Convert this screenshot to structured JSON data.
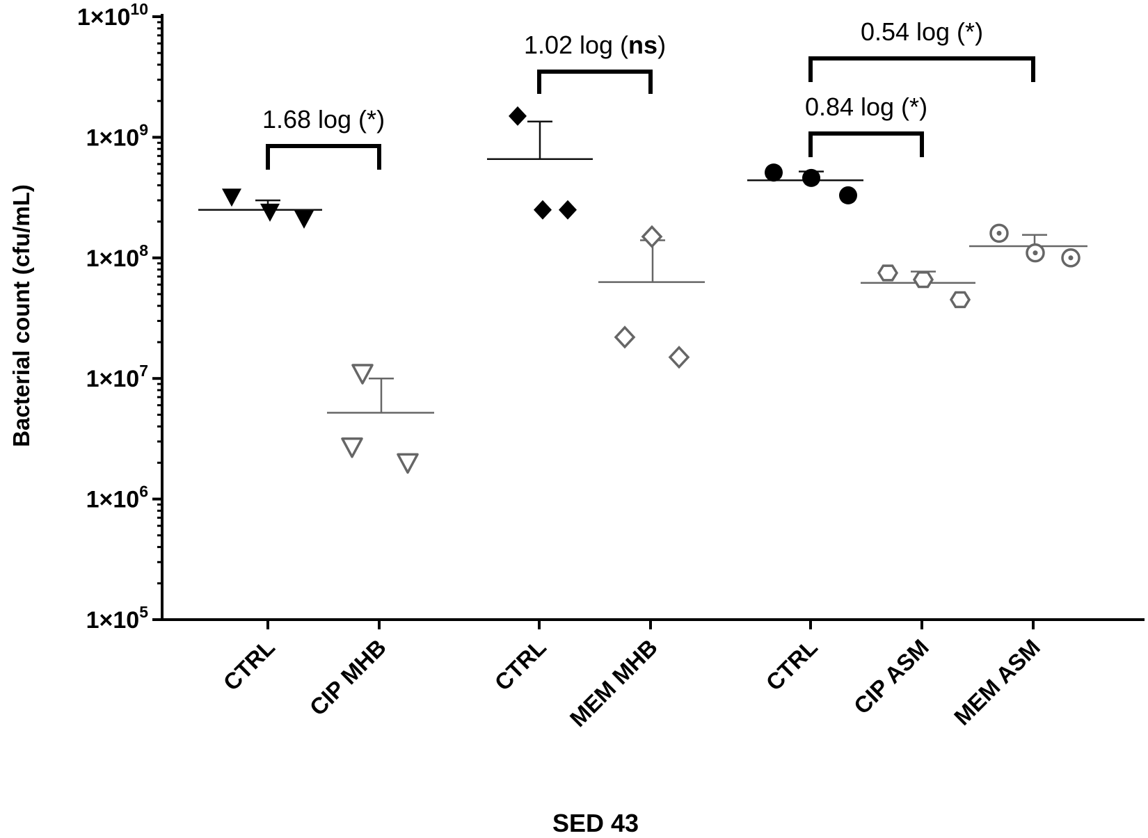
{
  "chart_data": {
    "type": "scatter",
    "title": "",
    "xlabel": "SED 43",
    "ylabel": "Bacterial count (cfu/mL)",
    "yscale": "log",
    "ylim": [
      100000,
      10000000000
    ],
    "y_ticks": [
      {
        "value": 100000,
        "mantissa": "1×10",
        "exp": "5"
      },
      {
        "value": 1000000,
        "mantissa": "1×10",
        "exp": "6"
      },
      {
        "value": 10000000,
        "mantissa": "1×10",
        "exp": "7"
      },
      {
        "value": 100000000,
        "mantissa": "1×10",
        "exp": "8"
      },
      {
        "value": 1000000000,
        "mantissa": "1×10",
        "exp": "9"
      },
      {
        "value": 10000000000,
        "mantissa": "1×10",
        "exp": "10"
      }
    ],
    "categories": [
      "CTRL",
      "CIP MHB",
      "CTRL",
      "MEM MHB",
      "CTRL",
      "CIP ASM",
      "MEM ASM"
    ],
    "groups": [
      {
        "label": "CTRL",
        "marker": "triangle-down",
        "filled": true,
        "color": "#000000",
        "values": [
          320000000,
          240000000,
          210000000
        ],
        "mean": 250000000,
        "error_top": 300000000
      },
      {
        "label": "CIP MHB",
        "marker": "triangle-down",
        "filled": false,
        "color": "#666666",
        "values": [
          11000000,
          2700000,
          2000000
        ],
        "mean": 5200000,
        "error_top": 10000000
      },
      {
        "label": "CTRL",
        "marker": "diamond",
        "filled": true,
        "color": "#000000",
        "values": [
          1500000000,
          250000000,
          250000000
        ],
        "mean": 660000000,
        "error_top": 1350000000
      },
      {
        "label": "MEM MHB",
        "marker": "diamond",
        "filled": false,
        "color": "#666666",
        "values": [
          150000000,
          22000000,
          15000000
        ],
        "mean": 63000000,
        "error_top": 140000000
      },
      {
        "label": "CTRL",
        "marker": "circle",
        "filled": true,
        "color": "#000000",
        "values": [
          510000000,
          460000000,
          330000000
        ],
        "mean": 440000000,
        "error_top": 520000000
      },
      {
        "label": "CIP ASM",
        "marker": "hexagon",
        "filled": false,
        "color": "#666666",
        "values": [
          75000000,
          66000000,
          45000000
        ],
        "mean": 62000000,
        "error_top": 77000000
      },
      {
        "label": "MEM ASM",
        "marker": "circle-dot",
        "filled": false,
        "color": "#666666",
        "values": [
          160000000,
          110000000,
          100000000
        ],
        "mean": 125000000,
        "error_top": 155000000
      }
    ],
    "annotations": [
      {
        "from": 0,
        "to": 1,
        "y_value": 600000000,
        "text_pre": "1.68 log (",
        "text_bold": "",
        "text_star": "*",
        "text_post": ")"
      },
      {
        "from": 2,
        "to": 3,
        "y_value": 6000000000,
        "text_pre": "1.02 log (",
        "text_bold": "ns",
        "text_star": "",
        "text_post": ")"
      },
      {
        "from": 4,
        "to": 5,
        "y_value": 1400000000,
        "text_pre": "0.84 log (",
        "text_bold": "",
        "text_star": "*",
        "text_post": ")"
      },
      {
        "from": 4,
        "to": 6,
        "y_value": 6000000000,
        "text_pre": "0.54 log (",
        "text_bold": "",
        "text_star": "*",
        "text_post": ")"
      }
    ]
  }
}
